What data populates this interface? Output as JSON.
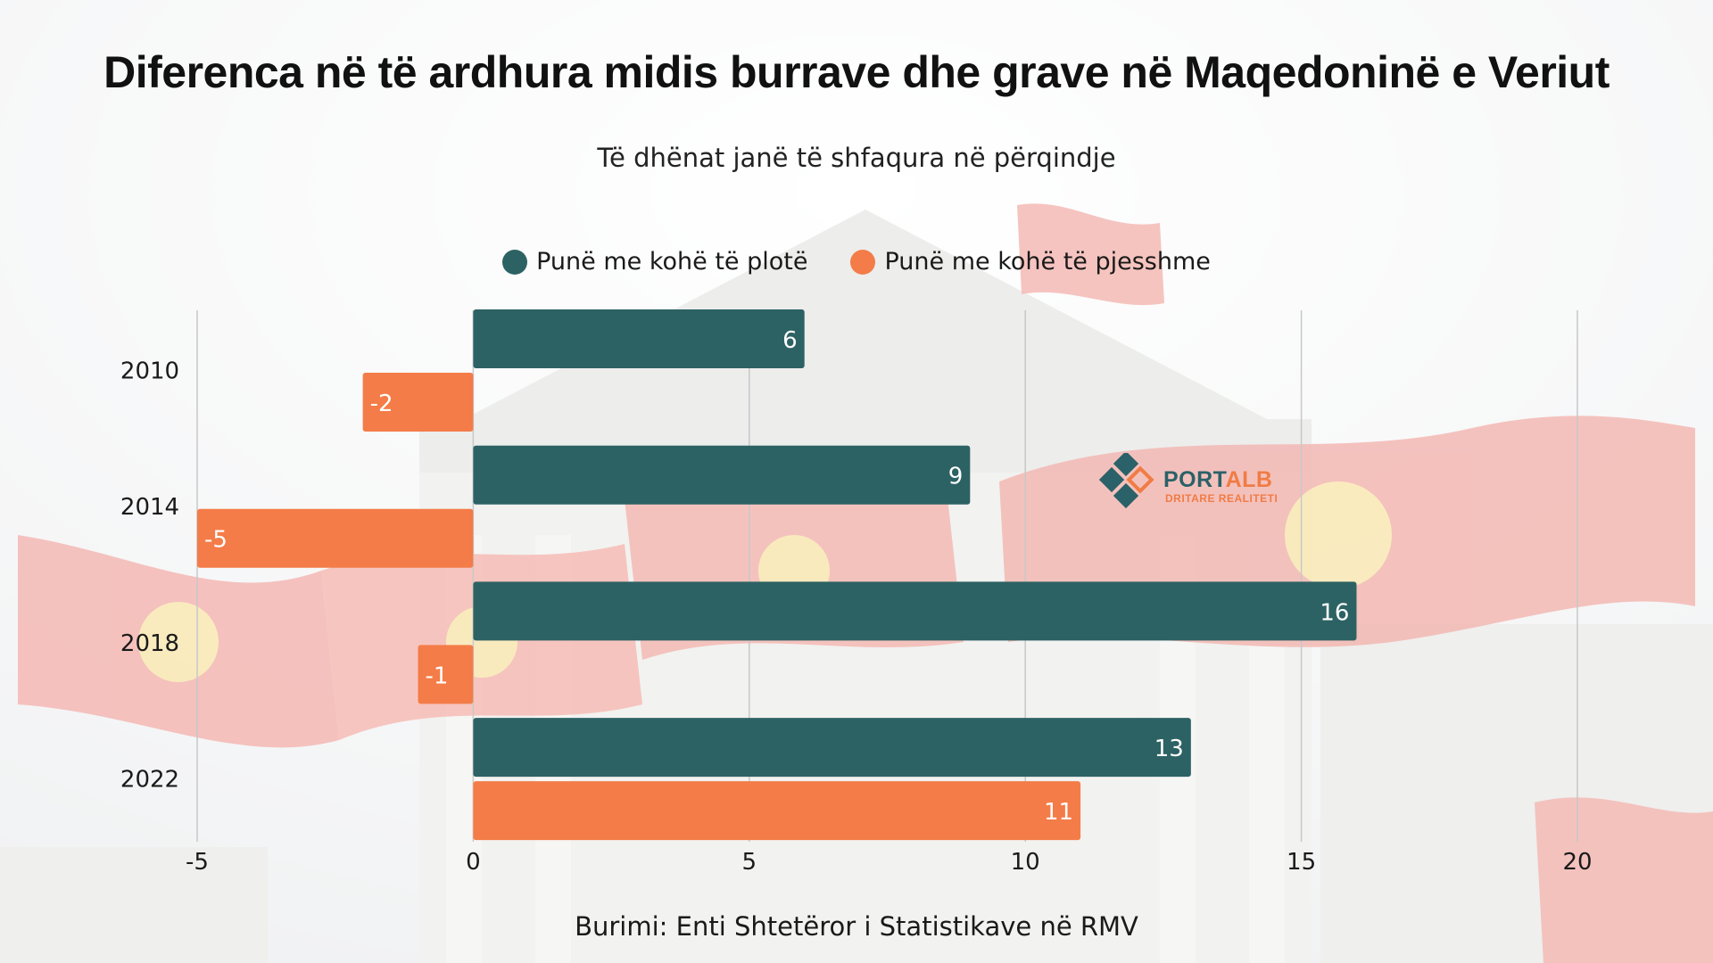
{
  "title": "Diferenca në të ardhura midis burrave dhe grave në Maqedoninë e Veriut",
  "subtitle": "Të dhënat janë të shfaqura në përqindje",
  "source": "Burimi: Enti Shtetëror i Statistikave në RMV",
  "logo": {
    "name_part1": "PORT",
    "name_part2": "ALB",
    "tagline": "DRITARE REALITETI"
  },
  "colors": {
    "full_time": "#2d6264",
    "part_time": "#f47c48",
    "axis_text": "#1a1a1a",
    "grid": "#c8c8c8"
  },
  "chart_data": {
    "type": "bar",
    "orientation": "horizontal",
    "categories": [
      "2010",
      "2014",
      "2018",
      "2022"
    ],
    "series": [
      {
        "name": "Punë me kohë të plotë",
        "values": [
          6,
          9,
          16,
          13
        ]
      },
      {
        "name": "Punë me kohë të pjesshme",
        "values": [
          -2,
          -5,
          -1,
          11
        ]
      }
    ],
    "xlim": [
      -5,
      20
    ],
    "xticks": [
      -5,
      0,
      5,
      10,
      15,
      20
    ],
    "grid": true,
    "legend_position": "top-center"
  }
}
